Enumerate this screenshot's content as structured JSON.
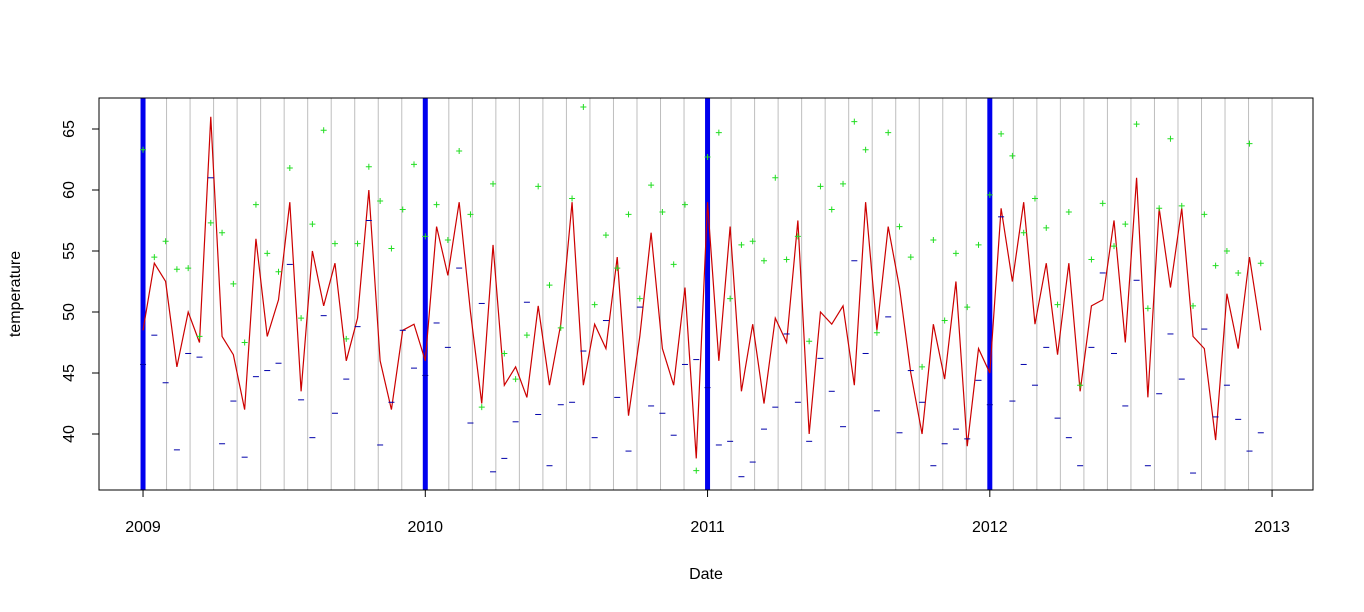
{
  "chart_data": {
    "type": "line",
    "xlabel": "Date",
    "ylabel": "temperature",
    "xlim": [
      2008.844,
      2013.145
    ],
    "ylim": [
      35.41,
      67.54
    ],
    "xticks": [
      2009,
      2010,
      2011,
      2012,
      2013
    ],
    "yticks": [
      40,
      45,
      50,
      55,
      60,
      65
    ],
    "year_lines": [
      2009,
      2010,
      2011,
      2012
    ],
    "year_line_color": "#0000ee",
    "month_line_color": "#bebebe",
    "x": [
      2009.0,
      2009.04,
      2009.08,
      2009.12,
      2009.16,
      2009.2,
      2009.24,
      2009.28,
      2009.32,
      2009.36,
      2009.4,
      2009.44,
      2009.48,
      2009.52,
      2009.56,
      2009.6,
      2009.64,
      2009.68,
      2009.72,
      2009.76,
      2009.8,
      2009.84,
      2009.88,
      2009.92,
      2009.96,
      2010.0,
      2010.04,
      2010.08,
      2010.12,
      2010.16,
      2010.2,
      2010.24,
      2010.28,
      2010.32,
      2010.36,
      2010.4,
      2010.44,
      2010.48,
      2010.52,
      2010.56,
      2010.6,
      2010.64,
      2010.68,
      2010.72,
      2010.76,
      2010.8,
      2010.84,
      2010.88,
      2010.92,
      2010.96,
      2011.0,
      2011.04,
      2011.08,
      2011.12,
      2011.16,
      2011.2,
      2011.24,
      2011.28,
      2011.32,
      2011.36,
      2011.4,
      2011.44,
      2011.48,
      2011.52,
      2011.56,
      2011.6,
      2011.64,
      2011.68,
      2011.72,
      2011.76,
      2011.8,
      2011.84,
      2011.88,
      2011.92,
      2011.96,
      2012.0,
      2012.04,
      2012.08,
      2012.12,
      2012.16,
      2012.2,
      2012.24,
      2012.28,
      2012.32,
      2012.36,
      2012.4,
      2012.44,
      2012.48,
      2012.52,
      2012.56,
      2012.6,
      2012.64,
      2012.68,
      2012.72,
      2012.76,
      2012.8,
      2012.84,
      2012.88,
      2012.92,
      2012.96
    ],
    "series": [
      {
        "style": "line",
        "color": "#cc0000",
        "values": [
          48.5,
          54,
          52.5,
          45.5,
          50,
          47.5,
          66,
          48,
          46.5,
          42,
          56,
          48,
          51,
          59,
          43.5,
          55,
          50.5,
          54,
          46,
          49.5,
          60,
          46,
          42,
          48.5,
          49,
          46,
          57,
          53,
          59,
          50,
          42.5,
          55.5,
          44,
          45.5,
          43,
          50.5,
          44,
          49,
          59,
          44,
          49,
          47,
          54.5,
          41.5,
          48,
          56.5,
          47,
          44,
          52,
          38,
          59,
          46,
          57,
          43.5,
          49,
          42.5,
          49.5,
          47.5,
          57.5,
          40,
          50,
          49,
          50.5,
          44,
          59,
          48.5,
          57,
          52,
          45,
          40,
          49,
          44.5,
          52.5,
          39,
          47,
          45,
          58.5,
          52.5,
          59,
          49,
          54,
          46.5,
          54,
          43.5,
          50.5,
          51,
          57.5,
          47.5,
          61,
          43,
          58.5,
          52,
          58.5,
          48,
          47,
          39.5,
          51.5,
          47,
          54.5,
          48.5
        ]
      },
      {
        "style": "plus",
        "color": "#22dd22",
        "values": [
          63.3,
          54.5,
          55.8,
          53.5,
          53.6,
          48.0,
          57.3,
          56.5,
          52.3,
          47.5,
          58.8,
          54.8,
          53.3,
          61.8,
          49.5,
          57.2,
          64.9,
          55.6,
          47.8,
          55.6,
          61.9,
          59.1,
          55.2,
          58.4,
          62.1,
          56.2,
          58.8,
          55.9,
          63.2,
          58.0,
          42.2,
          60.5,
          46.6,
          44.5,
          48.1,
          60.3,
          52.2,
          48.7,
          59.3,
          66.8,
          50.6,
          56.3,
          53.6,
          58.0,
          51.1,
          60.4,
          58.2,
          53.9,
          58.8,
          37.0,
          62.7,
          64.7,
          51.1,
          55.5,
          55.8,
          54.2,
          61.0,
          54.3,
          56.2,
          47.6,
          60.3,
          58.4,
          60.5,
          65.6,
          63.3,
          48.3,
          64.7,
          57.0,
          54.5,
          45.5,
          55.9,
          49.3,
          54.8,
          50.4,
          55.5,
          59.6,
          64.6,
          62.8,
          56.5,
          59.3,
          56.9,
          50.6,
          58.2,
          44.0,
          54.3,
          58.9,
          55.4,
          57.2,
          65.4,
          50.3,
          58.5,
          64.2,
          58.7,
          50.5,
          58.0,
          53.8,
          55.0,
          53.2,
          63.8,
          54.0
        ]
      },
      {
        "style": "dash",
        "color": "#0000aa",
        "values": [
          45.7,
          48.1,
          44.2,
          38.7,
          46.6,
          46.3,
          61.0,
          39.2,
          42.7,
          38.1,
          44.7,
          45.2,
          45.8,
          53.9,
          42.8,
          39.7,
          49.7,
          41.7,
          44.5,
          48.8,
          57.5,
          39.1,
          42.6,
          48.5,
          45.4,
          44.8,
          49.1,
          47.1,
          53.6,
          40.9,
          50.7,
          36.9,
          38.0,
          41.0,
          50.8,
          41.6,
          37.4,
          42.4,
          42.6,
          46.8,
          39.7,
          49.3,
          43.0,
          38.6,
          50.4,
          42.3,
          41.7,
          39.9,
          45.7,
          46.1,
          43.8,
          39.1,
          39.4,
          36.5,
          37.7,
          40.4,
          42.2,
          48.2,
          42.6,
          39.4,
          46.2,
          43.5,
          40.6,
          54.2,
          46.6,
          41.9,
          49.6,
          40.1,
          45.2,
          42.6,
          37.4,
          39.2,
          40.4,
          39.6,
          44.4,
          42.4,
          57.8,
          42.7,
          45.7,
          44.0,
          47.1,
          41.3,
          39.7,
          37.4,
          47.1,
          53.2,
          46.6,
          42.3,
          52.6,
          37.4,
          43.3,
          48.2,
          44.5,
          36.8,
          48.6,
          41.4,
          44.0,
          41.2,
          38.6,
          40.1
        ]
      }
    ]
  }
}
